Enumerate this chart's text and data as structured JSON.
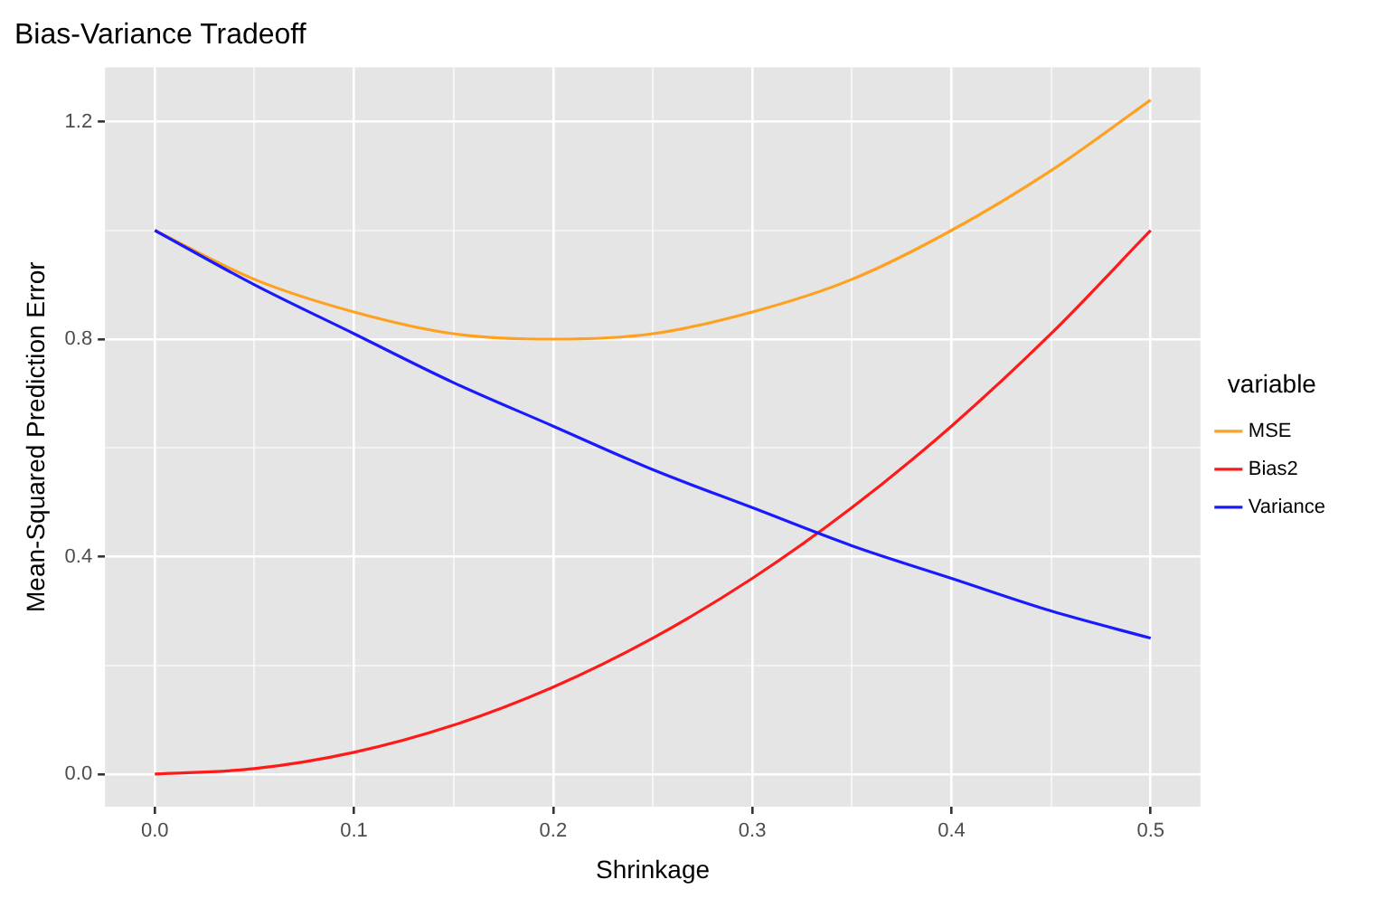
{
  "chart_data": {
    "type": "line",
    "title": "Bias-Variance Tradeoff",
    "xlabel": "Shrinkage",
    "ylabel": "Mean-Squared Prediction Error",
    "legend_title": "variable",
    "x": [
      0,
      0.05,
      0.1,
      0.15,
      0.2,
      0.25,
      0.3,
      0.35,
      0.4,
      0.45,
      0.5
    ],
    "series": [
      {
        "name": "MSE",
        "color": "#ffa01e",
        "values": [
          1,
          0.91,
          0.85,
          0.81,
          0.8,
          0.81,
          0.85,
          0.91,
          1.0,
          1.11,
          1.24
        ]
      },
      {
        "name": "Bias2",
        "color": "#ff1a1a",
        "values": [
          0,
          0.01,
          0.04,
          0.09,
          0.16,
          0.25,
          0.36,
          0.49,
          0.64,
          0.81,
          1.0
        ]
      },
      {
        "name": "Variance",
        "color": "#1a1aff",
        "values": [
          1,
          0.9,
          0.81,
          0.72,
          0.64,
          0.56,
          0.49,
          0.42,
          0.36,
          0.3,
          0.25
        ]
      }
    ],
    "xlim": [
      -0.025,
      0.525
    ],
    "xticks": [
      {
        "value": 0,
        "label": "0.0"
      },
      {
        "value": 0.05,
        "label": null
      },
      0.1,
      {
        "value": 0.15,
        "label": null
      },
      0.2,
      {
        "value": 0.25,
        "label": null
      },
      0.3,
      {
        "value": 0.35,
        "label": null
      },
      0.4,
      {
        "value": 0.45,
        "label": null
      },
      0.5
    ],
    "ylim": [
      -0.06,
      1.3
    ],
    "yticks": [
      {
        "value": 0,
        "label": "0.0"
      },
      {
        "value": 0.2,
        "label": null
      },
      0.4,
      {
        "value": 0.6,
        "label": null
      },
      0.8,
      {
        "value": 1.0,
        "label": null
      },
      1.2
    ],
    "grid": true,
    "legend": "right",
    "marker": "none",
    "line_style": "solid"
  }
}
